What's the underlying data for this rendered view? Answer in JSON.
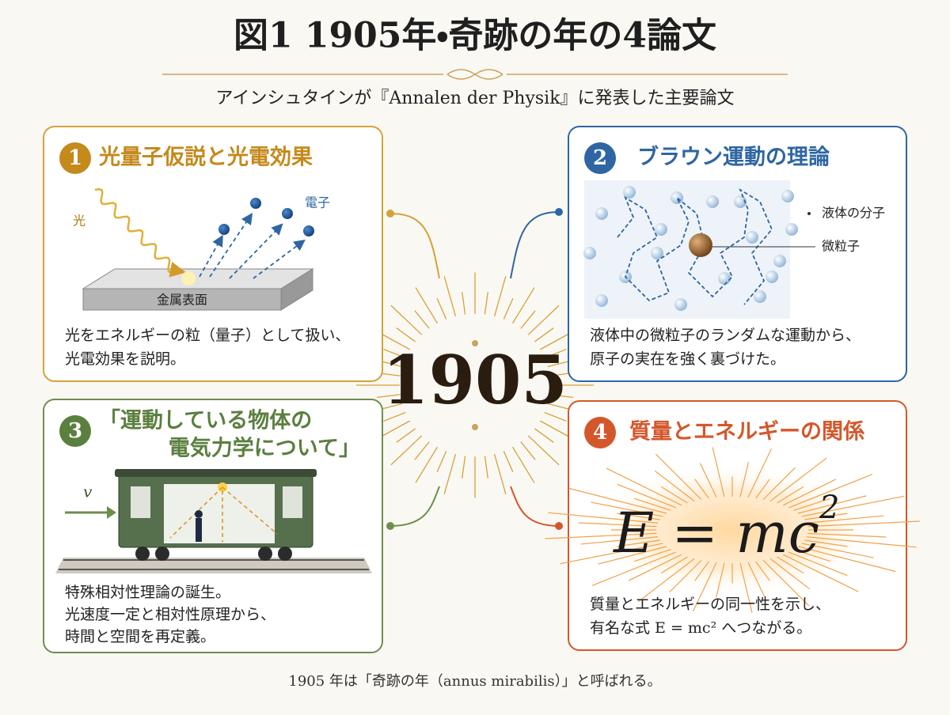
{
  "header": {
    "title": "図1  1905年・奇跡の年の4論文",
    "subtitle": "アインシュタインが『Annalen der Physik』に発表した主要論文"
  },
  "center": {
    "year": "1905"
  },
  "papers": [
    {
      "number": "1",
      "title_lines": [
        "光量子仮説と光電効果"
      ],
      "labels": [
        "光",
        "電子",
        "金属表面"
      ],
      "description_lines": [
        "光をエネルギーの粒（量子）として扱い、",
        "光電効果を説明。"
      ]
    },
    {
      "number": "2",
      "title_lines": [
        "ブラウン運動の理論"
      ],
      "labels": [
        "液体の分子",
        "微粒子"
      ],
      "description_lines": [
        "液体中の微粒子のランダムな運動から、",
        "原子の実在を強く裏づけた。"
      ]
    },
    {
      "number": "3",
      "title_lines": [
        "「運動している物体の",
        "電気力学について」"
      ],
      "labels": [
        "v"
      ],
      "description_lines": [
        "特殊相対性理論の誕生。",
        "光速度一定と相対性原理から、",
        "時間と空間を再定義。"
      ]
    },
    {
      "number": "4",
      "title_lines": [
        "質量とエネルギーの関係"
      ],
      "formula": {
        "base": "E = mc",
        "exponent": "2"
      },
      "description_lines": [
        "質量とエネルギーの同一性を示し、",
        "有名な式 E = mc² へつながる。"
      ]
    }
  ],
  "footer": "1905 年は「奇跡の年（annus mirabilis）」と呼ばれる。"
}
